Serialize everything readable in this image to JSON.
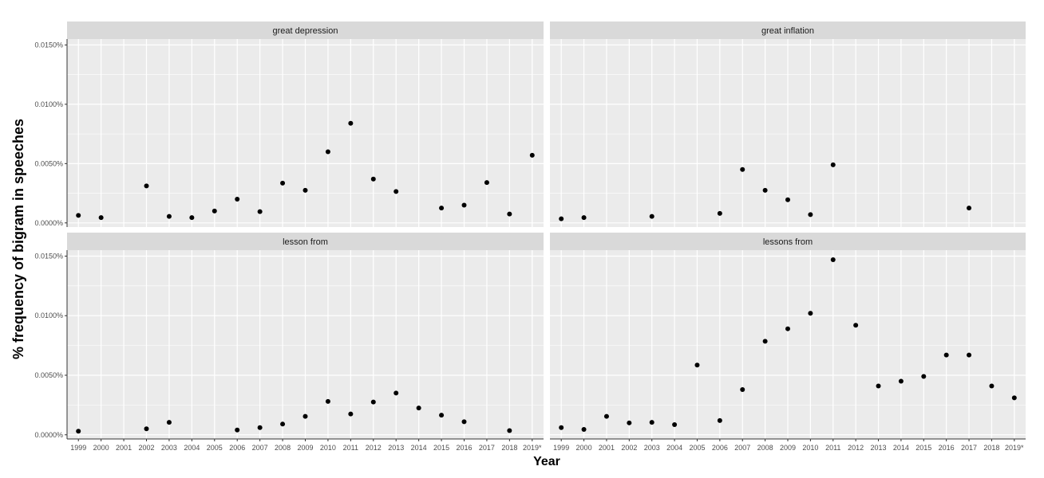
{
  "chart_data": {
    "type": "scatter",
    "facet_layout": "2x2",
    "xlabel": "Year",
    "ylabel": "% frequency of bigram in speeches",
    "x_categories": [
      "1999",
      "2000",
      "2001",
      "2002",
      "2003",
      "2004",
      "2005",
      "2006",
      "2007",
      "2008",
      "2009",
      "2010",
      "2011",
      "2012",
      "2013",
      "2014",
      "2015",
      "2016",
      "2017",
      "2018",
      "2019*"
    ],
    "y_ticks": [
      0,
      0.005,
      0.01,
      0.015
    ],
    "y_tick_labels": [
      "0.0000%",
      "0.0050%",
      "0.0100%",
      "0.0150%"
    ],
    "ylim": [
      -0.00035,
      0.0155
    ],
    "grid": true,
    "colors": {
      "panel_bg": "#ebebeb",
      "strip_bg": "#d9d9d9",
      "grid": "#ffffff",
      "point": "#000000"
    },
    "facets": [
      {
        "name": "great depression",
        "points": [
          {
            "x": "1999",
            "y": 0.00063
          },
          {
            "x": "2000",
            "y": 0.00045
          },
          {
            "x": "2002",
            "y": 0.00312
          },
          {
            "x": "2003",
            "y": 0.00055
          },
          {
            "x": "2004",
            "y": 0.00045
          },
          {
            "x": "2005",
            "y": 0.001
          },
          {
            "x": "2006",
            "y": 0.002
          },
          {
            "x": "2007",
            "y": 0.00095
          },
          {
            "x": "2008",
            "y": 0.00335
          },
          {
            "x": "2009",
            "y": 0.00275
          },
          {
            "x": "2010",
            "y": 0.006
          },
          {
            "x": "2011",
            "y": 0.0084
          },
          {
            "x": "2012",
            "y": 0.0037
          },
          {
            "x": "2013",
            "y": 0.00265
          },
          {
            "x": "2015",
            "y": 0.00125
          },
          {
            "x": "2016",
            "y": 0.0015
          },
          {
            "x": "2017",
            "y": 0.0034
          },
          {
            "x": "2018",
            "y": 0.00075
          },
          {
            "x": "2019*",
            "y": 0.0057
          }
        ]
      },
      {
        "name": "great inflation",
        "points": [
          {
            "x": "1999",
            "y": 0.00035
          },
          {
            "x": "2000",
            "y": 0.00045
          },
          {
            "x": "2003",
            "y": 0.00055
          },
          {
            "x": "2006",
            "y": 0.0008
          },
          {
            "x": "2007",
            "y": 0.0045
          },
          {
            "x": "2008",
            "y": 0.00275
          },
          {
            "x": "2009",
            "y": 0.00195
          },
          {
            "x": "2010",
            "y": 0.0007
          },
          {
            "x": "2011",
            "y": 0.0049
          },
          {
            "x": "2017",
            "y": 0.00125
          }
        ]
      },
      {
        "name": "lesson from",
        "points": [
          {
            "x": "1999",
            "y": 0.0003
          },
          {
            "x": "2002",
            "y": 0.0005
          },
          {
            "x": "2003",
            "y": 0.00105
          },
          {
            "x": "2006",
            "y": 0.0004
          },
          {
            "x": "2007",
            "y": 0.0006
          },
          {
            "x": "2008",
            "y": 0.0009
          },
          {
            "x": "2009",
            "y": 0.00155
          },
          {
            "x": "2010",
            "y": 0.0028
          },
          {
            "x": "2011",
            "y": 0.00175
          },
          {
            "x": "2012",
            "y": 0.00275
          },
          {
            "x": "2013",
            "y": 0.0035
          },
          {
            "x": "2014",
            "y": 0.00225
          },
          {
            "x": "2015",
            "y": 0.00165
          },
          {
            "x": "2016",
            "y": 0.0011
          },
          {
            "x": "2018",
            "y": 0.00035
          }
        ]
      },
      {
        "name": "lessons from",
        "points": [
          {
            "x": "1999",
            "y": 0.0006
          },
          {
            "x": "2000",
            "y": 0.00045
          },
          {
            "x": "2001",
            "y": 0.00155
          },
          {
            "x": "2002",
            "y": 0.001
          },
          {
            "x": "2003",
            "y": 0.00105
          },
          {
            "x": "2004",
            "y": 0.00085
          },
          {
            "x": "2005",
            "y": 0.00585
          },
          {
            "x": "2006",
            "y": 0.0012
          },
          {
            "x": "2007",
            "y": 0.0038
          },
          {
            "x": "2008",
            "y": 0.00785
          },
          {
            "x": "2009",
            "y": 0.0089
          },
          {
            "x": "2010",
            "y": 0.0102
          },
          {
            "x": "2011",
            "y": 0.0147
          },
          {
            "x": "2012",
            "y": 0.0092
          },
          {
            "x": "2013",
            "y": 0.0041
          },
          {
            "x": "2014",
            "y": 0.0045
          },
          {
            "x": "2015",
            "y": 0.0049
          },
          {
            "x": "2016",
            "y": 0.0067
          },
          {
            "x": "2017",
            "y": 0.0067
          },
          {
            "x": "2018",
            "y": 0.0041
          },
          {
            "x": "2019*",
            "y": 0.0031
          }
        ]
      }
    ]
  }
}
